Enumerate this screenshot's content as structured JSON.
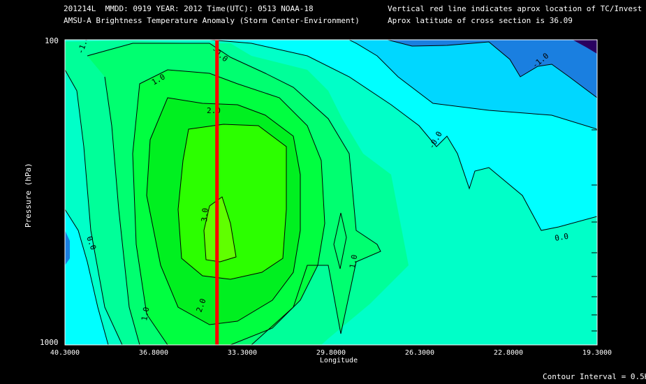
{
  "header": {
    "line1_left": "201214L  MMDD: 0919 YEAR: 2012 Time(UTC): 0513 NOAA-18",
    "line2_left": "AMSU-A Brightness Temperature Anomaly (Storm Center-Environment)",
    "line1_right": "Vertical red line indicates aprox location of TC/Invest",
    "line2_right": "Aprox latitude of cross section is 36.09"
  },
  "footer": {
    "contour_interval": "Contour Interval = 0.5K"
  },
  "chart_data": {
    "type": "contour",
    "title": "AMSU-A Brightness Temperature Anomaly (Storm Center-Environment)",
    "xlabel": "Longitude",
    "ylabel": "Pressure (hPa)",
    "xlim": [
      40.3,
      19.3
    ],
    "ylim": [
      1000,
      100
    ],
    "y_scale": "log",
    "x_ticks": [
      "40.3000",
      "36.8000",
      "33.3000",
      "29.8000",
      "26.3000",
      "22.8000",
      "19.3000"
    ],
    "y_ticks": [
      "100",
      "1000"
    ],
    "tc_longitude": 34.3,
    "contour_interval_k": 0.5,
    "contour_labels": [
      "-1.0",
      "-0.0",
      "1.0",
      "2.0",
      "3.0",
      "2.0",
      "1.0",
      "0.0",
      "0.0",
      "-1.0",
      "-0.0",
      "1.0"
    ],
    "levels": [
      -2.0,
      -1.5,
      -1.0,
      -0.5,
      0.0,
      0.5,
      1.0,
      1.5,
      2.0,
      2.5,
      3.0
    ],
    "colors": {
      "lt_m1.5": "#2a0060",
      "m1.5_m1.0": "#1a7fe0",
      "m1.0_m0.5": "#00d7ff",
      "m0.5_0.0": "#00ffff",
      "0.0_0.5": "#00ffc8",
      "0.5_1.0": "#00ff99",
      "1.0_1.5": "#00ff70",
      "1.5_2.0": "#00ff40",
      "2.0_2.5": "#00f020",
      "2.5_3.0": "#2cff00",
      "gt_3.0": "#60ff00"
    },
    "tc_line_color": "#ff0000"
  }
}
